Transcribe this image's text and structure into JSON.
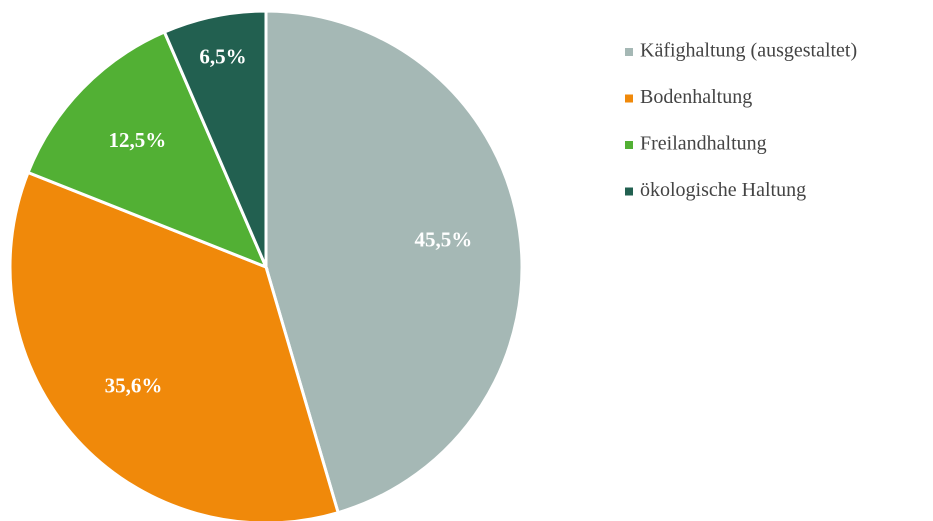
{
  "chart_data": {
    "type": "pie",
    "categories": [
      "Käfighaltung (ausgestaltet)",
      "Bodenhaltung",
      "Freilandhaltung",
      "ökologische Haltung"
    ],
    "values": [
      45.5,
      35.6,
      12.5,
      6.5
    ],
    "value_labels": [
      "45,5%",
      "35,6%",
      "12,5%",
      "6,5%"
    ],
    "colors": [
      "#a5b8b5",
      "#f0890a",
      "#52b034",
      "#226050"
    ],
    "legend": "right"
  }
}
